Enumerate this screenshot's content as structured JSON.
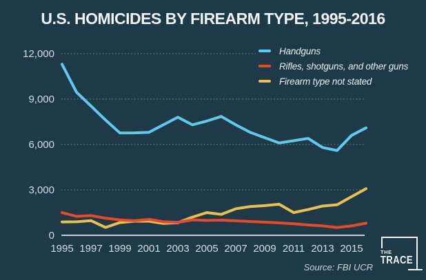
{
  "title": "U.S. HOMICIDES BY FIREARM TYPE, 1995-2016",
  "source": "Source: FBI UCR",
  "logo": {
    "line1": "THE",
    "line2": "TRACE"
  },
  "colors": {
    "background": "#1e3a49",
    "title_text": "#eef3f5",
    "axis_text": "#d5dde2",
    "grid": "#8da2ac",
    "baseline": "#c6d0d5",
    "handguns": "#62c9e8",
    "rifles": "#e8492b",
    "not_stated": "#e9bf4d"
  },
  "chart_data": {
    "type": "line",
    "title": "U.S. HOMICIDES BY FIREARM TYPE, 1995-2016",
    "xlabel": "",
    "ylabel": "",
    "xlim": [
      1995,
      2016
    ],
    "ylim": [
      0,
      12000
    ],
    "grid": "horizontal dotted",
    "legend_position": "top-right",
    "x": [
      1995,
      1996,
      1997,
      1998,
      1999,
      2000,
      2001,
      2002,
      2003,
      2004,
      2005,
      2006,
      2007,
      2008,
      2009,
      2010,
      2011,
      2012,
      2013,
      2014,
      2015,
      2016
    ],
    "x_ticks": [
      1995,
      1997,
      1999,
      2001,
      2003,
      2005,
      2007,
      2009,
      2011,
      2013,
      2015
    ],
    "x_tick_labels": [
      "1995",
      "1997",
      "1999",
      "2001",
      "2003",
      "2005",
      "2007",
      "2009",
      "2011",
      "2013",
      "2015"
    ],
    "y_ticks": [
      0,
      3000,
      6000,
      9000,
      12000
    ],
    "y_tick_labels": [
      "0",
      "3,000",
      "6,000",
      "9,000",
      "12,000"
    ],
    "series": [
      {
        "name": "Handguns",
        "color": "#62c9e8",
        "values": [
          11300,
          9450,
          8540,
          7620,
          6760,
          6770,
          6800,
          7300,
          7800,
          7300,
          7550,
          7850,
          7300,
          6800,
          6450,
          6100,
          6250,
          6400,
          5800,
          5600,
          6600,
          7100
        ]
      },
      {
        "name": "Rifles, shotguns, and other guns",
        "color": "#e8492b",
        "values": [
          1500,
          1250,
          1300,
          1130,
          1020,
          960,
          1060,
          890,
          860,
          1020,
          980,
          1000,
          960,
          910,
          870,
          820,
          760,
          680,
          620,
          520,
          620,
          800
        ]
      },
      {
        "name": "Firearm type not stated",
        "color": "#e9bf4d",
        "values": [
          880,
          890,
          970,
          520,
          840,
          930,
          930,
          780,
          830,
          1200,
          1500,
          1380,
          1750,
          1900,
          1960,
          2050,
          1500,
          1700,
          1930,
          2020,
          2550,
          3080
        ]
      }
    ]
  }
}
